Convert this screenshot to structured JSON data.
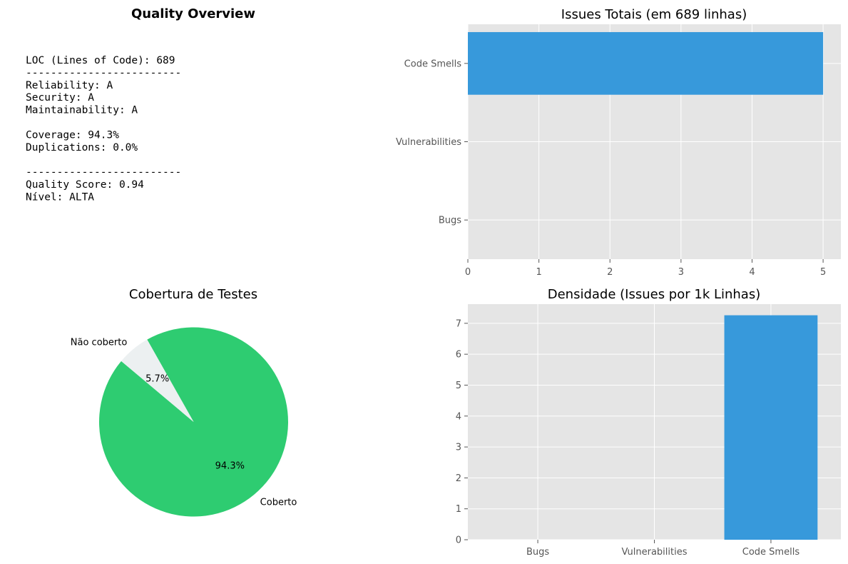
{
  "overview": {
    "title": "Quality Overview",
    "lines": [
      "LOC (Lines of Code): 689",
      "-------------------------",
      "Reliability: A",
      "Security: A",
      "Maintainability: A",
      "",
      "Coverage: 94.3%",
      "Duplications: 0.0%",
      "",
      "-------------------------",
      "Quality Score: 0.94",
      "Nível: ALTA"
    ]
  },
  "colors": {
    "bar": "#3799db",
    "plot_bg": "#e5e5e5",
    "grid": "#ffffff",
    "pie_covered": "#2ecc71",
    "pie_uncovered": "#ecf0f1",
    "tick_text": "#555555"
  },
  "chart_data": [
    {
      "type": "bar",
      "orientation": "horizontal",
      "title": "Issues Totais (em 689 linhas)",
      "categories": [
        "Bugs",
        "Vulnerabilities",
        "Code Smells"
      ],
      "values": [
        0,
        0,
        5
      ],
      "xlim": [
        0,
        5.25
      ],
      "xticks": [
        0,
        1,
        2,
        3,
        4,
        5
      ],
      "grid": true
    },
    {
      "type": "pie",
      "title": "Cobertura de Testes",
      "labels": [
        "Coberto",
        "Não coberto"
      ],
      "values": [
        94.3,
        5.7
      ],
      "pct_labels": [
        "94.3%",
        "5.7%"
      ]
    },
    {
      "type": "bar",
      "orientation": "vertical",
      "title": "Densidade (Issues por 1k Linhas)",
      "categories": [
        "Bugs",
        "Vulnerabilities",
        "Code Smells"
      ],
      "values": [
        0,
        0,
        7.26
      ],
      "ylim": [
        0,
        7.62
      ],
      "yticks": [
        0,
        1,
        2,
        3,
        4,
        5,
        6,
        7
      ],
      "grid": true
    }
  ]
}
